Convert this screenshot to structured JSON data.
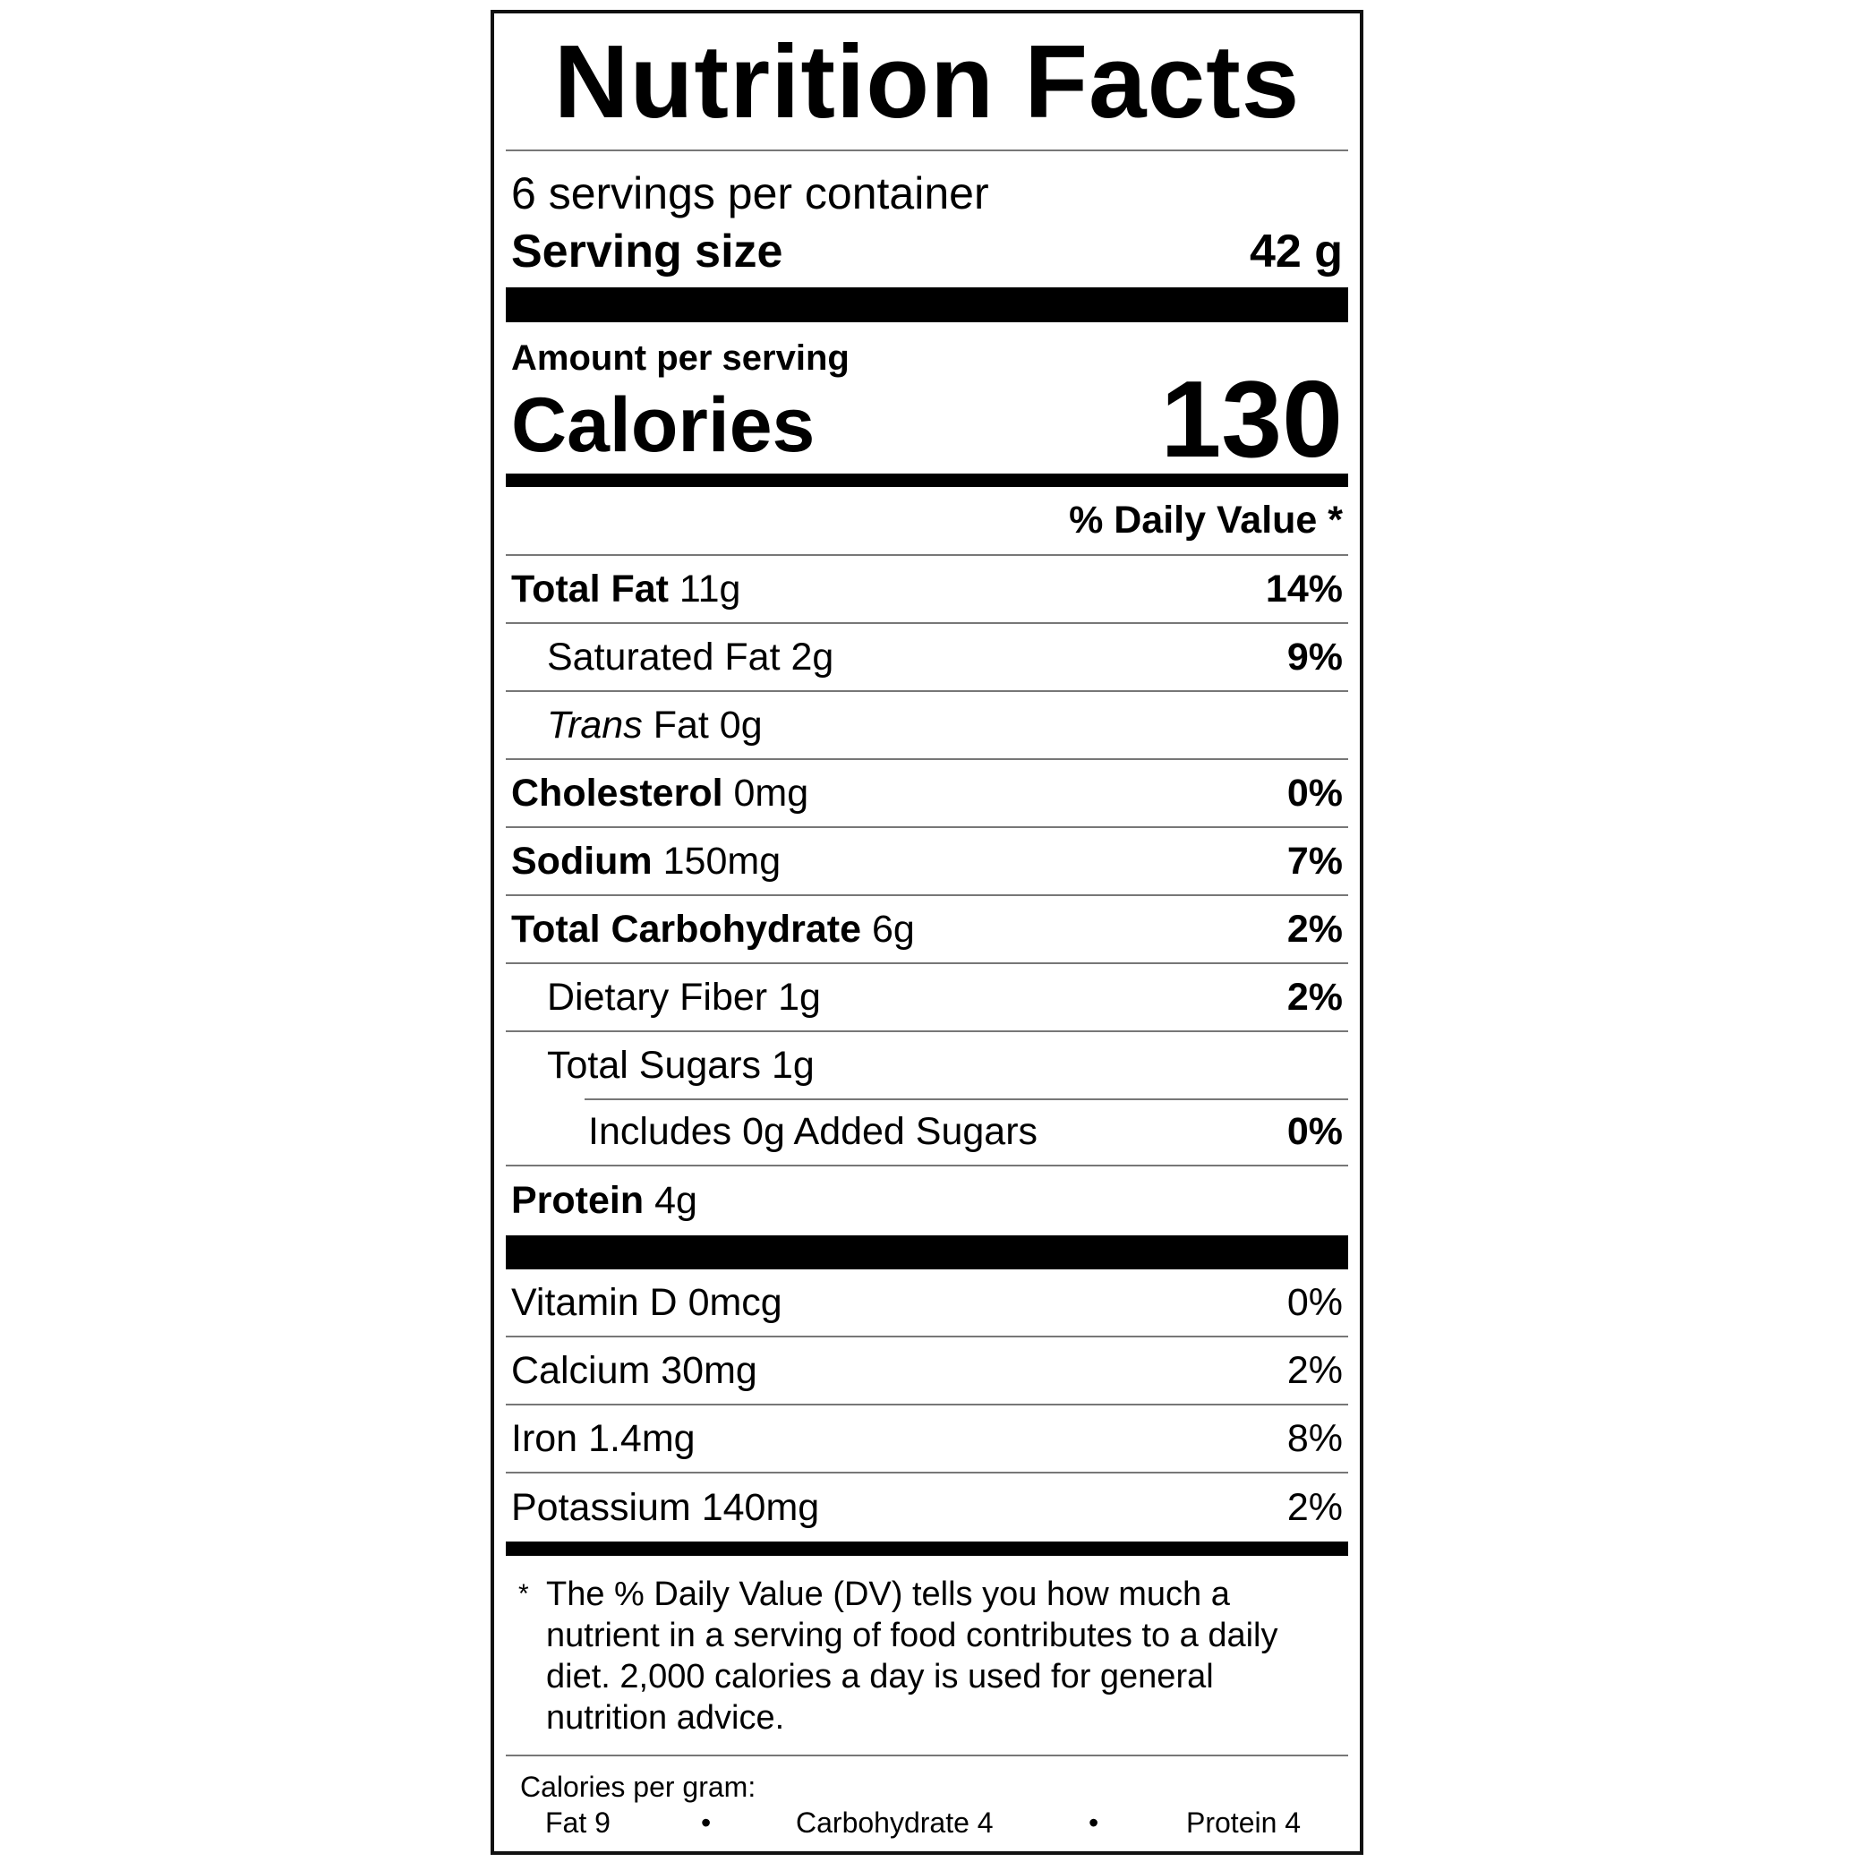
{
  "title": "Nutrition Facts",
  "servings_per_container": "6 servings per container",
  "serving_size": {
    "label": "Serving size",
    "value": "42 g"
  },
  "amount_per_serving": "Amount per serving",
  "calories": {
    "label": "Calories",
    "value": "130"
  },
  "daily_value_header": "% Daily Value *",
  "nutrients": [
    {
      "name": "Total Fat",
      "amount": "11g",
      "dv": "14%"
    },
    {
      "name": "Saturated Fat",
      "amount": "2g",
      "dv": "9%"
    },
    {
      "name": "Trans",
      "name_rest": "Fat",
      "amount": "0g",
      "dv": ""
    },
    {
      "name": "Cholesterol",
      "amount": "0mg",
      "dv": "0%"
    },
    {
      "name": "Sodium",
      "amount": "150mg",
      "dv": "7%"
    },
    {
      "name": "Total Carbohydrate",
      "amount": "6g",
      "dv": "2%"
    },
    {
      "name": "Dietary Fiber",
      "amount": "1g",
      "dv": "2%"
    },
    {
      "name": "Total Sugars",
      "amount": "1g",
      "dv": ""
    },
    {
      "name": "Includes 0g Added Sugars",
      "amount": "",
      "dv": "0%"
    },
    {
      "name": "Protein",
      "amount": "4g",
      "dv": ""
    }
  ],
  "vitamins": [
    {
      "name": "Vitamin D",
      "amount": "0mcg",
      "dv": "0%"
    },
    {
      "name": "Calcium",
      "amount": "30mg",
      "dv": "2%"
    },
    {
      "name": "Iron",
      "amount": "1.4mg",
      "dv": "8%"
    },
    {
      "name": "Potassium",
      "amount": "140mg",
      "dv": "2%"
    }
  ],
  "footnote": {
    "marker": "*",
    "text": "The % Daily Value (DV) tells you how much a nutrient in a serving of food contributes to a daily diet. 2,000 calories a day is used for general nutrition advice."
  },
  "calories_per_gram": {
    "label": "Calories per gram:",
    "fat": "Fat 9",
    "carbohydrate": "Carbohydrate 4",
    "protein": "Protein 4",
    "separator": "•"
  }
}
